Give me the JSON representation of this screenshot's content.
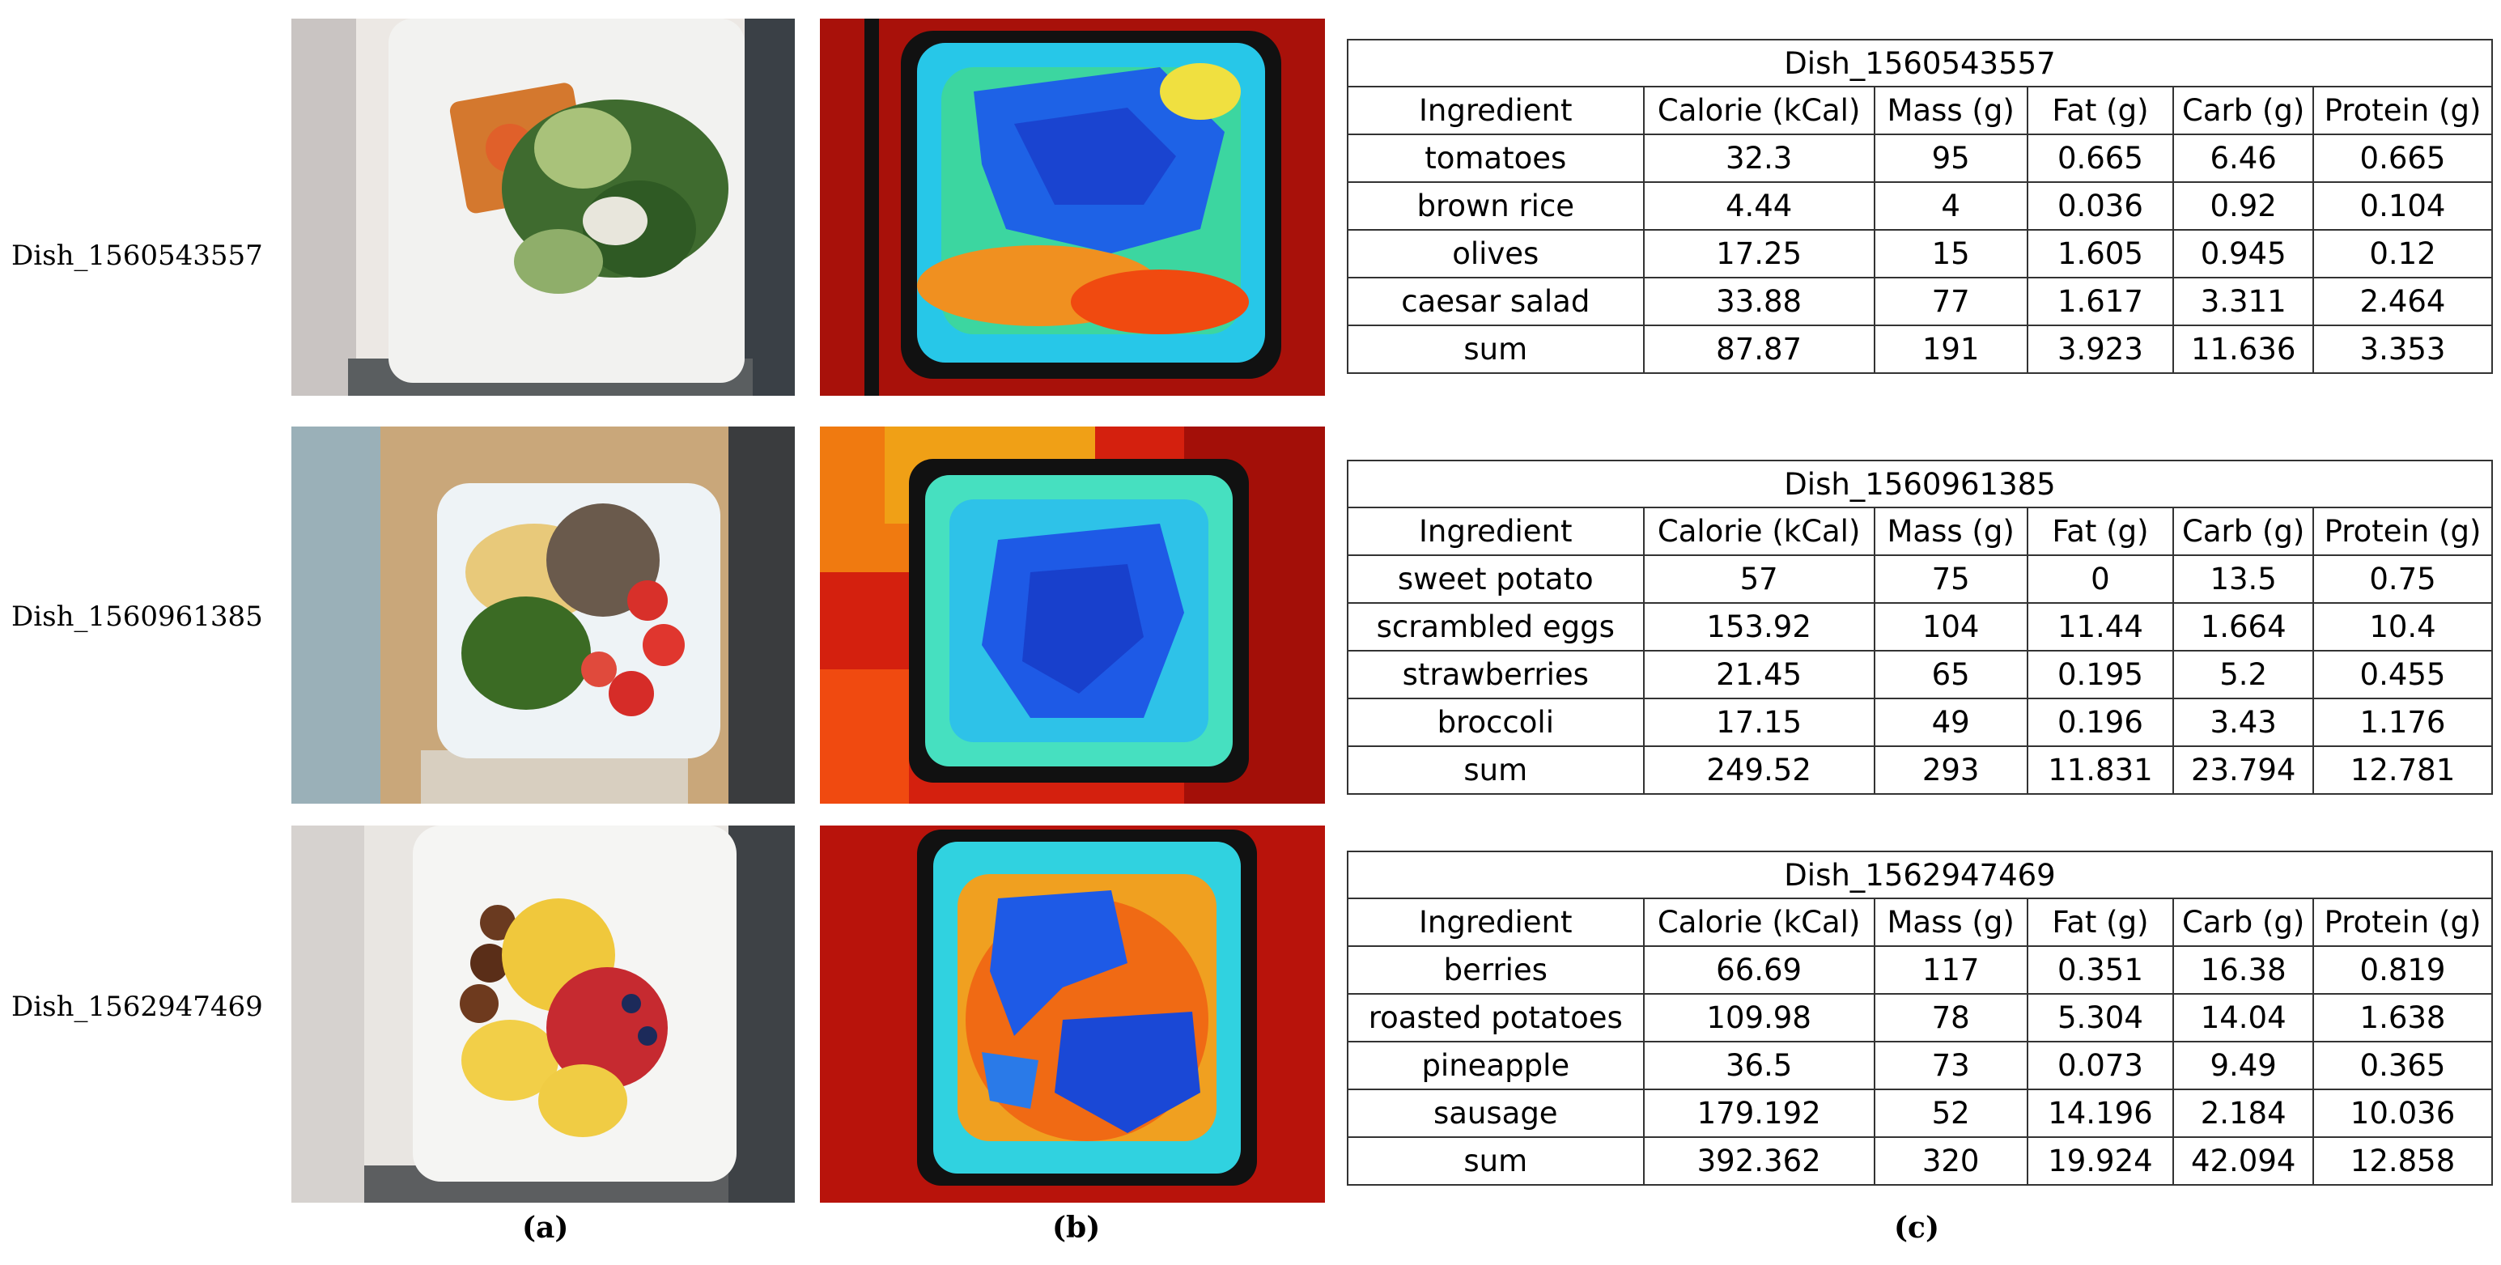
{
  "colors": {
    "table_border": "#333333",
    "plate": "#f4f4f2",
    "depth_far": "#c0170d",
    "depth_near": "#1f5fe8"
  },
  "columns": [
    "Ingredient",
    "Calorie (kCal)",
    "Mass (g)",
    "Fat (g)",
    "Carb (g)",
    "Protein (g)"
  ],
  "dishes": [
    {
      "id": "Dish_1560543557",
      "rows": [
        [
          "tomatoes",
          "32.3",
          "95",
          "0.665",
          "6.46",
          "0.665"
        ],
        [
          "brown rice",
          "4.44",
          "4",
          "0.036",
          "0.92",
          "0.104"
        ],
        [
          "olives",
          "17.25",
          "15",
          "1.605",
          "0.945",
          "0.12"
        ],
        [
          "caesar salad",
          "33.88",
          "77",
          "1.617",
          "3.311",
          "2.464"
        ],
        [
          "sum",
          "87.87",
          "191",
          "3.923",
          "11.636",
          "3.353"
        ]
      ]
    },
    {
      "id": "Dish_1560961385",
      "rows": [
        [
          "sweet potato",
          "57",
          "75",
          "0",
          "13.5",
          "0.75"
        ],
        [
          "scrambled eggs",
          "153.92",
          "104",
          "11.44",
          "1.664",
          "10.4"
        ],
        [
          "strawberries",
          "21.45",
          "65",
          "0.195",
          "5.2",
          "0.455"
        ],
        [
          "broccoli",
          "17.15",
          "49",
          "0.196",
          "3.43",
          "1.176"
        ],
        [
          "sum",
          "249.52",
          "293",
          "11.831",
          "23.794",
          "12.781"
        ]
      ]
    },
    {
      "id": "Dish_1562947469",
      "rows": [
        [
          "berries",
          "66.69",
          "117",
          "0.351",
          "16.38",
          "0.819"
        ],
        [
          "roasted potatoes",
          "109.98",
          "78",
          "5.304",
          "14.04",
          "1.638"
        ],
        [
          "pineapple",
          "36.5",
          "73",
          "0.073",
          "9.49",
          "0.365"
        ],
        [
          "sausage",
          "179.192",
          "52",
          "14.196",
          "2.184",
          "10.036"
        ],
        [
          "sum",
          "392.362",
          "320",
          "19.924",
          "42.094",
          "12.858"
        ]
      ]
    }
  ],
  "captions": {
    "a": "(a)",
    "b": "(b)",
    "c": "(c)"
  }
}
